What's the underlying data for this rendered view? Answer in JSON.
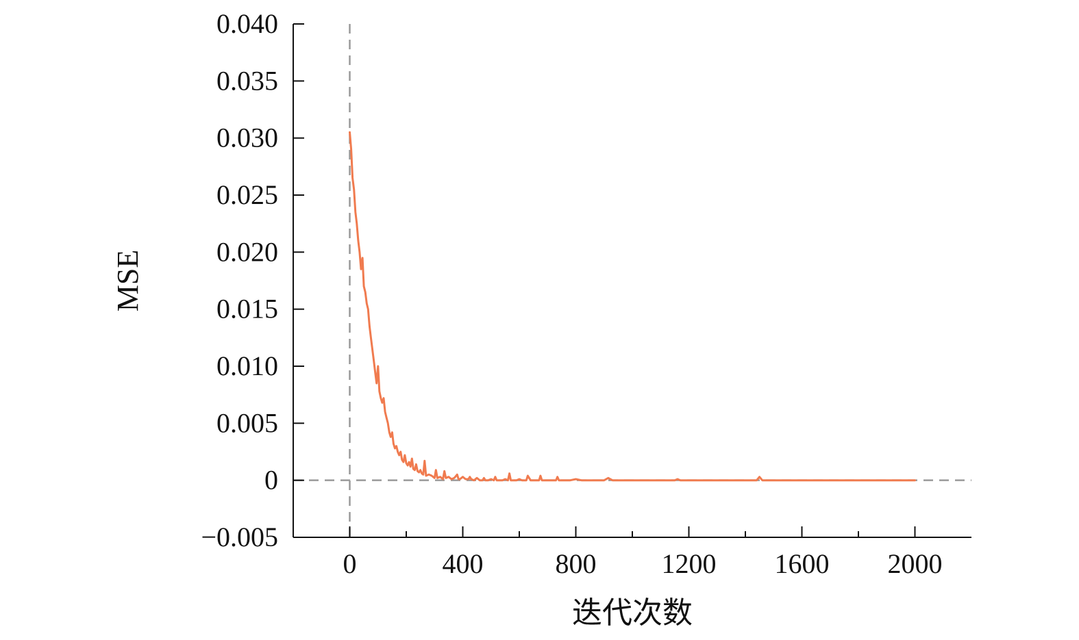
{
  "chart_data": {
    "type": "line",
    "xlabel": "迭代次数",
    "ylabel": "MSE",
    "xlim": [
      -200,
      2200
    ],
    "ylim": [
      -0.005,
      0.04
    ],
    "xticks": [
      0,
      400,
      800,
      1200,
      1600,
      2000
    ],
    "xtick_labels": [
      "0",
      "400",
      "800",
      "1200",
      "1600",
      "2000"
    ],
    "xminor_ticks": [
      200,
      600,
      1000,
      1400,
      1800
    ],
    "yticks": [
      -0.005,
      0,
      0.005,
      0.01,
      0.015,
      0.02,
      0.025,
      0.03,
      0.035,
      0.04
    ],
    "ytick_labels": [
      "−0.005",
      "0",
      "0.005",
      "0.010",
      "0.015",
      "0.020",
      "0.025",
      "0.030",
      "0.035",
      "0.040"
    ],
    "reference_lines": [
      {
        "axis": "x",
        "value": 0,
        "style": "dashed"
      },
      {
        "axis": "y",
        "value": 0,
        "style": "dashed"
      }
    ],
    "grid": false,
    "colors": {
      "series": "#f07b4f",
      "reference": "#9a9a9a",
      "axis": "#111111"
    },
    "series": [
      {
        "x": [
          0,
          5,
          10,
          15,
          20,
          25,
          30,
          35,
          40,
          45,
          50,
          55,
          60,
          65,
          70,
          75,
          80,
          85,
          90,
          95,
          100,
          105,
          110,
          115,
          120,
          125,
          130,
          135,
          140,
          145,
          150,
          155,
          160,
          165,
          170,
          175,
          180,
          185,
          190,
          195,
          200,
          205,
          210,
          215,
          220,
          225,
          230,
          235,
          240,
          245,
          250,
          255,
          260,
          265,
          270,
          280,
          290,
          300,
          305,
          310,
          320,
          330,
          335,
          340,
          350,
          360,
          370,
          380,
          385,
          390,
          400,
          410,
          420,
          425,
          430,
          440,
          450,
          460,
          470,
          475,
          480,
          490,
          500,
          510,
          515,
          520,
          530,
          540,
          550,
          560,
          565,
          570,
          580,
          590,
          600,
          610,
          620,
          625,
          630,
          640,
          650,
          660,
          670,
          675,
          680,
          690,
          700,
          720,
          730,
          735,
          740,
          760,
          780,
          800,
          820,
          840,
          860,
          880,
          900,
          915,
          930,
          960,
          1000,
          1050,
          1100,
          1150,
          1160,
          1170,
          1200,
          1250,
          1300,
          1350,
          1400,
          1440,
          1450,
          1460,
          1500,
          1550,
          1600,
          1650,
          1700,
          1750,
          1800,
          1850,
          1900,
          1950,
          2000
        ],
        "y": [
          0.0305,
          0.029,
          0.0265,
          0.0255,
          0.0235,
          0.0225,
          0.021,
          0.02,
          0.0185,
          0.0195,
          0.017,
          0.0165,
          0.0155,
          0.015,
          0.0135,
          0.0125,
          0.0115,
          0.0105,
          0.0095,
          0.0085,
          0.01,
          0.0078,
          0.0072,
          0.0068,
          0.0072,
          0.006,
          0.0055,
          0.005,
          0.0042,
          0.0038,
          0.0042,
          0.0032,
          0.0028,
          0.003,
          0.0025,
          0.0022,
          0.0025,
          0.0018,
          0.0016,
          0.0022,
          0.0015,
          0.0013,
          0.0016,
          0.0012,
          0.0019,
          0.001,
          0.0009,
          0.0014,
          0.0008,
          0.0007,
          0.0009,
          0.0006,
          0.0005,
          0.0017,
          0.0004,
          0.0005,
          0.0004,
          0.0002,
          0.0009,
          0.0002,
          0.0003,
          0.0001,
          0.0008,
          0.0002,
          0.0003,
          0.0001,
          0.0002,
          0.0005,
          0.0001,
          0.0001,
          0.0003,
          0.0001,
          0.0001,
          0.0003,
          0.0001,
          0.0,
          0.0002,
          0.0,
          0.0,
          0.0002,
          0.0,
          0.0,
          0.0001,
          0.0,
          0.0003,
          0.0,
          0.0,
          0.0,
          0.0001,
          0.0,
          0.0006,
          0.0,
          0.0,
          0.0,
          0.0001,
          0.0,
          0.0,
          0.0,
          0.0004,
          0.0,
          0.0,
          0.0,
          0.0,
          0.0004,
          0.0,
          0.0,
          0.0,
          0.0,
          0.0,
          0.0003,
          0.0,
          0.0,
          0.0,
          0.0001,
          0.0,
          0.0,
          0.0,
          0.0,
          0.0,
          0.0002,
          0.0,
          0.0,
          0.0,
          0.0,
          0.0,
          0.0,
          0.0001,
          0.0,
          0.0,
          0.0,
          0.0,
          0.0,
          0.0,
          0.0,
          0.0003,
          0.0,
          0.0,
          0.0,
          0.0,
          0.0,
          0.0,
          0.0,
          0.0,
          0.0,
          0.0,
          0.0,
          0.0
        ]
      }
    ]
  }
}
